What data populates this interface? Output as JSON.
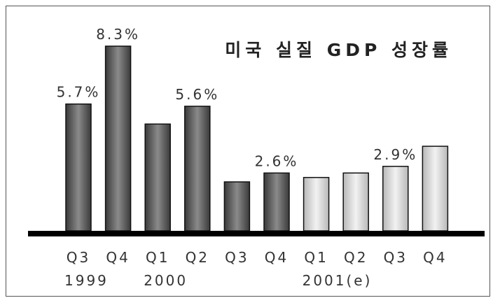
{
  "chart_data": {
    "type": "bar",
    "title": "미국 실질 GDP 성장률",
    "categories": [
      "Q3",
      "Q4",
      "Q1",
      "Q2",
      "Q3",
      "Q4",
      "Q1",
      "Q2",
      "Q3",
      "Q4"
    ],
    "values": [
      5.7,
      8.3,
      4.8,
      5.6,
      2.2,
      2.6,
      2.4,
      2.6,
      2.9,
      3.8
    ],
    "data_labels": [
      "5.7%",
      "8.3%",
      "",
      "5.6%",
      "",
      "2.6%",
      "",
      "",
      "2.9%",
      ""
    ],
    "year_labels": [
      {
        "text": "1999",
        "start_index": 0
      },
      {
        "text": "2000",
        "start_index": 2
      },
      {
        "text": "2001(e)",
        "start_index": 6
      }
    ],
    "estimated_from_index": 6,
    "ylim": [
      0,
      8.3
    ],
    "grid": false,
    "xlabel": "",
    "ylabel": "",
    "colors": {
      "actual": "#3a3a3a",
      "actual_highlight": "#8a8a8a",
      "estimate": "#b8b8b8",
      "estimate_highlight": "#f2f2f2",
      "baseline": "#000000"
    }
  }
}
